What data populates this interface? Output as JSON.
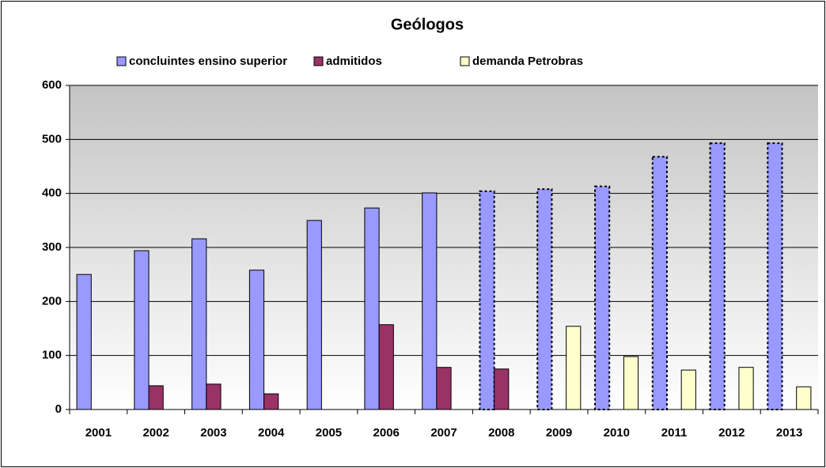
{
  "chart_data": {
    "type": "bar",
    "title": "Geólogos",
    "categories": [
      "2001",
      "2002",
      "2003",
      "2004",
      "2005",
      "2006",
      "2007",
      "2008",
      "2009",
      "2010",
      "2011",
      "2012",
      "2013"
    ],
    "series": [
      {
        "name": "concluintes ensino superior",
        "color": "#9999ff",
        "values": [
          250,
          294,
          316,
          258,
          350,
          373,
          401,
          404,
          408,
          413,
          468,
          493,
          493
        ],
        "dashed": [
          false,
          false,
          false,
          false,
          false,
          false,
          false,
          true,
          true,
          true,
          true,
          true,
          true
        ]
      },
      {
        "name": "admitidos",
        "color": "#993366",
        "values": [
          null,
          44,
          47,
          29,
          null,
          157,
          78,
          75,
          null,
          null,
          null,
          null,
          null
        ]
      },
      {
        "name": "demanda Petrobras",
        "color": "#ffffcc",
        "values": [
          null,
          null,
          null,
          null,
          null,
          null,
          null,
          null,
          154,
          98,
          73,
          78,
          42
        ]
      }
    ],
    "ylim": [
      0,
      600
    ],
    "yticks": [
      0,
      100,
      200,
      300,
      400,
      500,
      600
    ],
    "grid": true
  }
}
